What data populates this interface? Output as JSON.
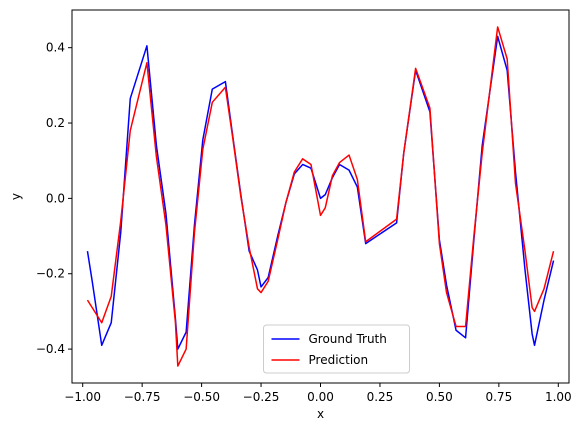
{
  "chart_data": {
    "type": "line",
    "xlabel": "x",
    "ylabel": "y",
    "xlim": [
      -1.045,
      1.045
    ],
    "ylim": [
      -0.49,
      0.5
    ],
    "xticks": [
      -1.0,
      -0.75,
      -0.5,
      -0.25,
      0.0,
      0.25,
      0.5,
      0.75,
      1.0
    ],
    "xtick_labels": [
      "−1.00",
      "−0.75",
      "−0.50",
      "−0.25",
      "0.00",
      "0.25",
      "0.50",
      "0.75",
      "1.00"
    ],
    "yticks": [
      -0.4,
      -0.2,
      0.0,
      0.2,
      0.4
    ],
    "ytick_labels": [
      "−0.4",
      "−0.2",
      "0.0",
      "0.2",
      "0.4"
    ],
    "grid": false,
    "legend_position": "bottom-center",
    "series": [
      {
        "name": "Ground Truth",
        "color": "#0000ff",
        "x": [
          -0.98,
          -0.96,
          -0.92,
          -0.88,
          -0.84,
          -0.8,
          -0.73,
          -0.69,
          -0.65,
          -0.61,
          -0.6,
          -0.565,
          -0.53,
          -0.495,
          -0.455,
          -0.4,
          -0.37,
          -0.335,
          -0.3,
          -0.265,
          -0.25,
          -0.22,
          -0.18,
          -0.145,
          -0.11,
          -0.075,
          -0.04,
          0.0,
          0.02,
          0.05,
          0.08,
          0.12,
          0.155,
          0.19,
          0.32,
          0.35,
          0.4,
          0.46,
          0.5,
          0.53,
          0.57,
          0.61,
          0.645,
          0.68,
          0.745,
          0.785,
          0.82,
          0.86,
          0.89,
          0.9,
          0.94,
          0.98
        ],
        "y": [
          -0.14,
          -0.22,
          -0.39,
          -0.33,
          -0.09,
          0.265,
          0.405,
          0.14,
          -0.04,
          -0.32,
          -0.4,
          -0.355,
          -0.07,
          0.155,
          0.29,
          0.31,
          0.17,
          0.01,
          -0.14,
          -0.19,
          -0.235,
          -0.21,
          -0.1,
          -0.01,
          0.065,
          0.09,
          0.08,
          0.0,
          0.01,
          0.055,
          0.09,
          0.075,
          0.03,
          -0.12,
          -0.065,
          0.12,
          0.34,
          0.23,
          -0.11,
          -0.23,
          -0.35,
          -0.37,
          -0.11,
          0.14,
          0.43,
          0.34,
          0.07,
          -0.19,
          -0.36,
          -0.39,
          -0.27,
          -0.165
        ]
      },
      {
        "name": "Prediction",
        "color": "#ff0000",
        "x": [
          -0.98,
          -0.96,
          -0.92,
          -0.88,
          -0.84,
          -0.8,
          -0.73,
          -0.69,
          -0.65,
          -0.61,
          -0.6,
          -0.565,
          -0.53,
          -0.495,
          -0.455,
          -0.4,
          -0.37,
          -0.335,
          -0.3,
          -0.265,
          -0.25,
          -0.22,
          -0.18,
          -0.145,
          -0.11,
          -0.075,
          -0.04,
          0.0,
          0.02,
          0.05,
          0.08,
          0.12,
          0.155,
          0.19,
          0.32,
          0.35,
          0.4,
          0.46,
          0.5,
          0.53,
          0.57,
          0.61,
          0.645,
          0.68,
          0.745,
          0.785,
          0.82,
          0.86,
          0.89,
          0.9,
          0.94,
          0.98
        ],
        "y": [
          -0.27,
          -0.29,
          -0.33,
          -0.26,
          -0.06,
          0.18,
          0.36,
          0.11,
          -0.07,
          -0.33,
          -0.445,
          -0.4,
          -0.09,
          0.13,
          0.255,
          0.295,
          0.165,
          0.005,
          -0.13,
          -0.24,
          -0.25,
          -0.22,
          -0.11,
          -0.01,
          0.07,
          0.105,
          0.09,
          -0.045,
          -0.025,
          0.06,
          0.095,
          0.115,
          0.05,
          -0.115,
          -0.055,
          0.12,
          0.345,
          0.24,
          -0.12,
          -0.25,
          -0.34,
          -0.34,
          -0.1,
          0.12,
          0.455,
          0.37,
          0.04,
          -0.14,
          -0.29,
          -0.3,
          -0.24,
          -0.14
        ]
      }
    ]
  }
}
